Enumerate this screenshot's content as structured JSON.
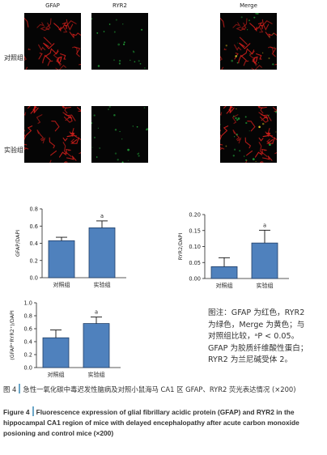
{
  "micrograph_grid": {
    "columns": [
      "GFAP",
      "RYR2",
      "Merge"
    ],
    "rows": [
      "对照组",
      "实验组"
    ]
  },
  "chart_data": [
    {
      "type": "bar",
      "categories": [
        "对照组",
        "实验组"
      ],
      "values": [
        0.43,
        0.58
      ],
      "errors": [
        0.04,
        0.08
      ],
      "ylabel": "GFAP/DAPI",
      "ylim": [
        0.0,
        0.8
      ],
      "yticks": [
        "0.0",
        "0.2",
        "0.4",
        "0.6",
        "0.8"
      ],
      "annotations": [
        "",
        "a"
      ],
      "color": "#4f81bd"
    },
    {
      "type": "bar",
      "categories": [
        "对照组",
        "实验组"
      ],
      "values": [
        0.037,
        0.111
      ],
      "errors": [
        0.028,
        0.04
      ],
      "ylabel": "RYR2/DAPI",
      "ylim": [
        0.0,
        0.2
      ],
      "yticks": [
        "0.00",
        "0.05",
        "0.10",
        "0.15",
        "0.20"
      ],
      "annotations": [
        "",
        "a"
      ],
      "color": "#4f81bd"
    },
    {
      "type": "bar",
      "categories": [
        "对照组",
        "实验组"
      ],
      "values": [
        0.46,
        0.68
      ],
      "errors": [
        0.12,
        0.1
      ],
      "ylabel": "(GFAP⁺RYR2⁺)/DAPI",
      "ylim": [
        0.0,
        1.0
      ],
      "yticks": [
        "0.0",
        "0.2",
        "0.4",
        "0.6",
        "0.8",
        "1.0"
      ],
      "annotations": [
        "",
        "a"
      ],
      "color": "#4f81bd"
    }
  ],
  "note": "图注：GFAP 为红色，RYR2 为绿色，Merge 为黄色；与对照组比较，ᵃP < 0.05。GFAP 为胶质纤维酸性蛋白；RYR2 为兰尼碱受体 2。",
  "caption": {
    "cn_label": "图 4",
    "cn_text": "急性一氧化碳中毒迟发性脑病及对照小鼠海马 CA1 区 GFAP、RYR2 荧光表达情况 (×200)",
    "en_label": "Figure 4",
    "en_text": "Fluorescence expression of glial fibrillary acidic protein (GFAP) and RYR2 in the hippocampal CA1 region of mice with delayed encephalopathy after acute carbon monoxide posioning and control mice (×200)"
  }
}
